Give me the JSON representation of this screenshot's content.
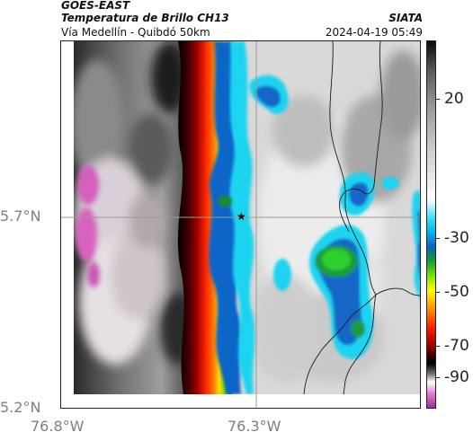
{
  "header": {
    "satellite": "GOES-EAST",
    "product": "Temperatura de Brillo CH13",
    "region": "Vía Medellín - Quibdó 50km",
    "agency": "SIATA",
    "datetime": "2024-04-19 05:49"
  },
  "axes": {
    "lat_labels": [
      "5.7°N",
      "5.2°N"
    ],
    "lon_labels": [
      "76.8°W",
      "76.3°W"
    ]
  },
  "colorbar": {
    "tick_labels": [
      "20",
      "-30",
      "-50",
      "-70",
      "-90"
    ],
    "units_note": "",
    "colors": [
      "#c24fa8",
      "#ffffff",
      "#8a8a8a",
      "#000000",
      "#800000",
      "#ff2000",
      "#ff8800",
      "#ffff00",
      "#00c000",
      "#1060c0",
      "#00d0f0",
      "#e8e8e8",
      "#ffffff",
      "#404040"
    ]
  },
  "map": {
    "marker": "star-icon",
    "gridline_color": "#9a9a9a",
    "border_color": "#1a1a1a"
  }
}
